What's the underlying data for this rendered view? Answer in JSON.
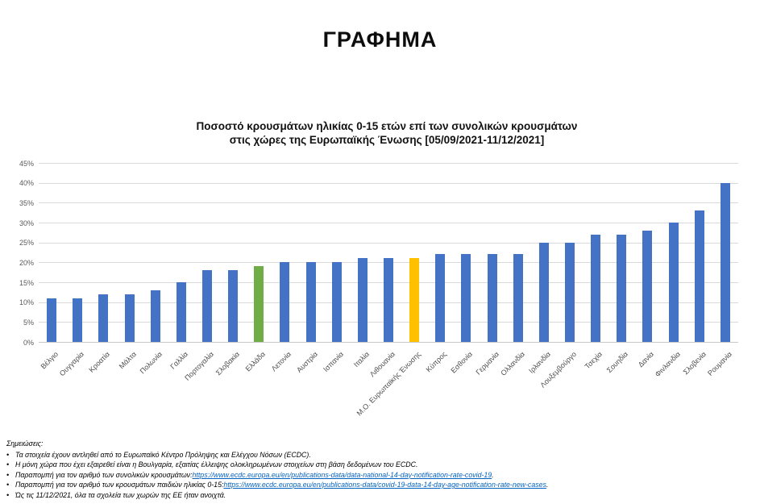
{
  "page": {
    "title": "ΓΡΑΦΗΜΑ"
  },
  "chart_data": {
    "type": "bar",
    "title_line1": "Ποσοστό κρουσμάτων ηλικίας 0-15 ετών επί των συνολικών κρουσμάτων",
    "title_line2": "στις χώρες της Ευρωπαϊκής Ένωσης [05/09/2021-11/12/2021]",
    "categories": [
      "Βέλγιο",
      "Ουγγαρία",
      "Κροατία",
      "Μάλτα",
      "Πολωνία",
      "Γαλλία",
      "Πορτογαλία",
      "Σλοβακία",
      "Ελλάδα",
      "Λετονία",
      "Αυστρία",
      "Ισπανία",
      "Ιταλία",
      "Λιθουανία",
      "Μ.Ο. Ευρωπαϊκής Ένωσης",
      "Κύπρος",
      "Εσθονία",
      "Γερμανία",
      "Ολλανδία",
      "Ιρλανδία",
      "Λουξεμβούργο",
      "Τσεχία",
      "Σουηδία",
      "Δανία",
      "Φινλανδία",
      "Σλοβενία",
      "Ρουμανία"
    ],
    "values": [
      11,
      11,
      12,
      12,
      13,
      15,
      18,
      18,
      19,
      20,
      20,
      20,
      21,
      21,
      21,
      22,
      22,
      22,
      22,
      25,
      25,
      27,
      27,
      28,
      30,
      33,
      40
    ],
    "unit": "%",
    "ylim": [
      0,
      45
    ],
    "ytick_step": 5,
    "ytick_labels": [
      "0%",
      "5%",
      "10%",
      "15%",
      "20%",
      "25%",
      "30%",
      "35%",
      "40%",
      "45%"
    ],
    "grid": true,
    "legend": "none",
    "bar_color_default": "#4472C4",
    "highlights": [
      {
        "index": 8,
        "label": "Ελλάδα",
        "color": "#70AD47"
      },
      {
        "index": 14,
        "label": "Μ.Ο. Ευρωπαϊκής Ένωσης",
        "color": "#FFC000"
      }
    ]
  },
  "notes": {
    "heading": "Σημειώσεις:",
    "bullet": "•",
    "link_color": "#0563C1",
    "items": [
      {
        "text": "Τα στοιχεία έχουν αντληθεί από το Ευρωπαϊκό Κέντρο Πρόληψης και Ελέγχου Νόσων (ECDC)."
      },
      {
        "text": "Η μόνη χώρα που έχει εξαιρεθεί είναι η Βουλγαρία, εξαιτίας έλλειψης ολοκληρωμένων στοιχείων στη βάση δεδομένων του ECDC."
      },
      {
        "text": "Παραπομπή για τον αριθμό των συνολικών κρουσμάτων: ",
        "link": "https://www.ecdc.europa.eu/en/publications-data/data-national-14-day-notification-rate-covid-19",
        "after": "."
      },
      {
        "text": "Παραπομπή για τον αριθμό των κρουσμάτων παιδιών ηλικίας 0-15: ",
        "link": "https://www.ecdc.europa.eu/en/publications-data/covid-19-data-14-day-age-notification-rate-new-cases",
        "after": "."
      },
      {
        "text": "Ώς τις 11/12/2021, όλα τα σχολεία των χωρών της ΕΕ ήταν ανοιχτά."
      }
    ]
  }
}
